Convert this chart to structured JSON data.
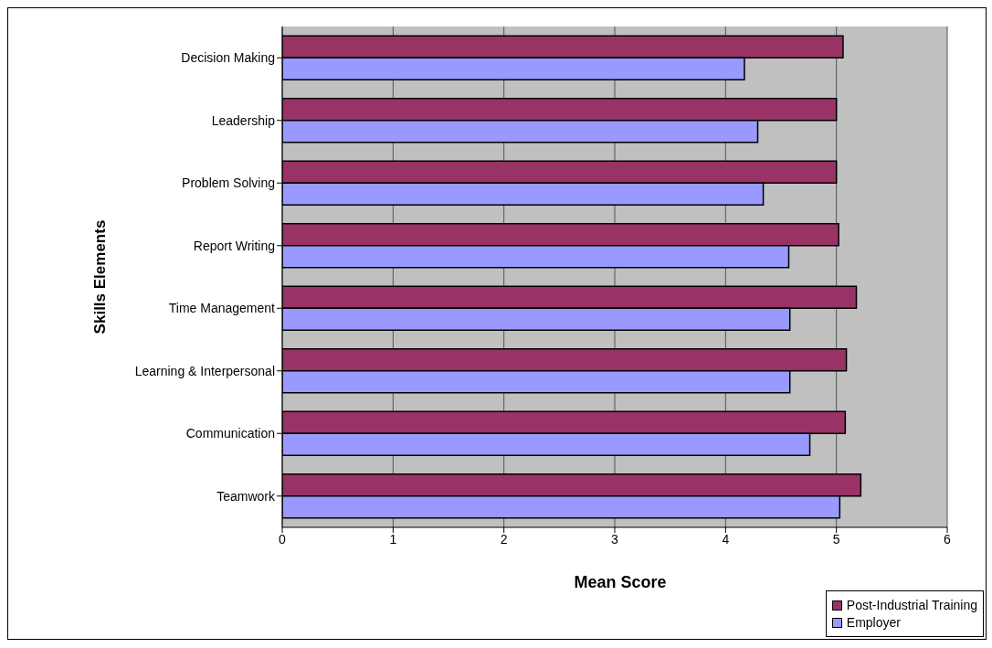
{
  "chart_data": {
    "type": "bar",
    "orientation": "horizontal",
    "xlabel": "Mean Score",
    "ylabel": "Skills Elements",
    "categories": [
      "Decision Making",
      "Leadership",
      "Problem Solving",
      "Report Writing",
      "Time Management",
      "Learning & Interpersonal",
      "Communication",
      "Teamwork"
    ],
    "series": [
      {
        "name": "Post-Industrial Training",
        "color": "#993366",
        "values": [
          5.06,
          5.0,
          5.0,
          5.02,
          5.18,
          5.09,
          5.08,
          5.22
        ]
      },
      {
        "name": "Employer",
        "color": "#9999ff",
        "values": [
          4.17,
          4.29,
          4.34,
          4.57,
          4.58,
          4.58,
          4.76,
          5.03
        ]
      }
    ],
    "xlim": [
      0,
      6
    ],
    "xticks": [
      0,
      1,
      2,
      3,
      4,
      5,
      6
    ],
    "grid": "x",
    "legend": "bottom right"
  }
}
